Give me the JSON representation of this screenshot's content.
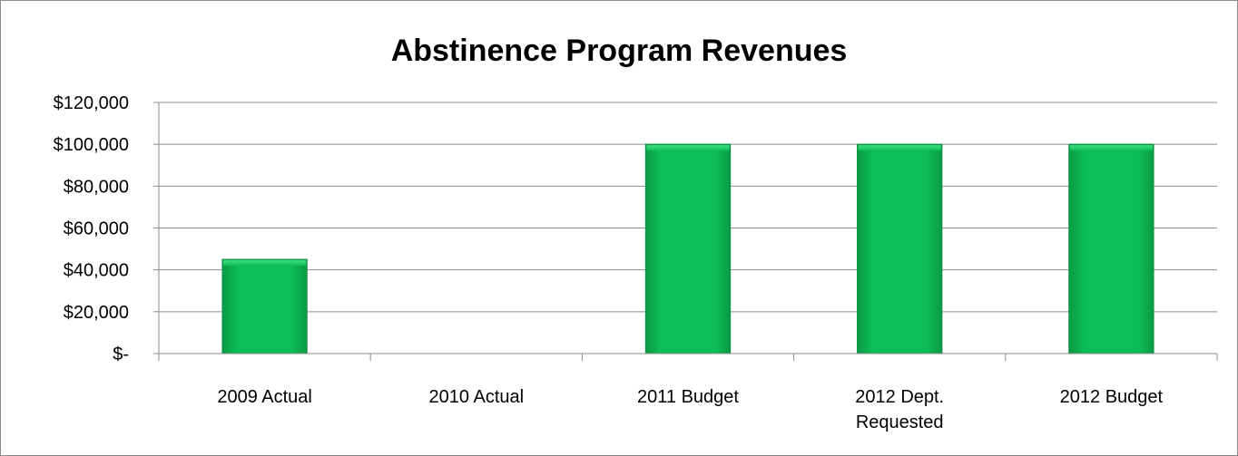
{
  "chart_data": {
    "type": "bar",
    "title": "Abstinence Program Revenues",
    "xlabel": "",
    "ylabel": "",
    "categories": [
      "2009 Actual",
      "2010 Actual",
      "2011 Budget",
      "2012 Dept. Requested",
      "2012 Budget"
    ],
    "category_lines": [
      [
        "2009 Actual"
      ],
      [
        "2010 Actual"
      ],
      [
        "2011 Budget"
      ],
      [
        "2012 Dept.",
        "Requested"
      ],
      [
        "2012 Budget"
      ]
    ],
    "values": [
      45000,
      0,
      100000,
      100000,
      100000
    ],
    "ylim": [
      0,
      120000
    ],
    "ytick_values": [
      0,
      20000,
      40000,
      60000,
      80000,
      100000,
      120000
    ],
    "ytick_labels": [
      "$-",
      "$20,000",
      "$40,000",
      "$60,000",
      "$80,000",
      "$100,000",
      "$120,000"
    ],
    "grid": true,
    "legend": "none",
    "bar_color": "#0dbd55",
    "bar_edge_color": "#0a8f40"
  }
}
